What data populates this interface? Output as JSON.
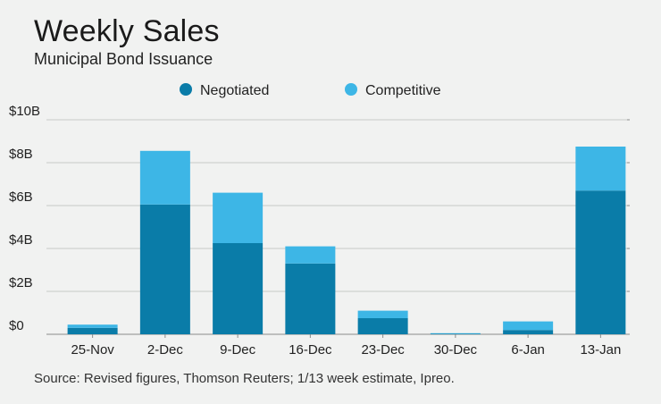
{
  "title": "Weekly Sales",
  "subtitle": "Municipal Bond Issuance",
  "source": "Source: Revised figures, Thomson Reuters; 1/13 week estimate, Ipreo.",
  "colors": {
    "negotiated": "#0a7ca8",
    "competitive": "#3db6e6",
    "grid": "#c7c9c8",
    "axis": "#8a8c8b"
  },
  "chart_data": {
    "type": "bar",
    "stacked": true,
    "categories": [
      "25-Nov",
      "2-Dec",
      "9-Dec",
      "16-Dec",
      "23-Dec",
      "30-Dec",
      "6-Jan",
      "13-Jan"
    ],
    "series": [
      {
        "name": "Negotiated",
        "values": [
          0.3,
          6.05,
          4.25,
          3.3,
          0.75,
          0.02,
          0.2,
          6.7
        ]
      },
      {
        "name": "Competitive",
        "values": [
          0.15,
          2.5,
          2.35,
          0.8,
          0.35,
          0.03,
          0.4,
          2.05
        ]
      }
    ],
    "ylim": [
      0,
      10
    ],
    "yticks": [
      0,
      2,
      4,
      6,
      8,
      10
    ],
    "ytick_labels": [
      "$0",
      "$2B",
      "$4B",
      "$6B",
      "$8B",
      "$10B"
    ],
    "grid": true,
    "legend": "top"
  }
}
